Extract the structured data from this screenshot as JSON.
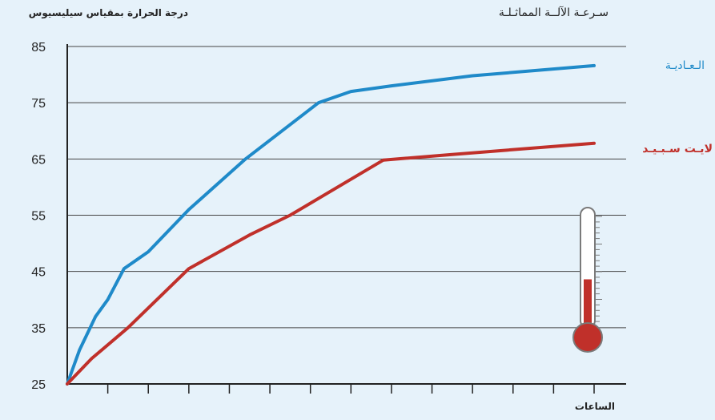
{
  "chart_data": {
    "type": "line",
    "title": "سـرعـة الآلــة المماثـلـة",
    "ylabel": "درجة الحرارة بمقياس سيليسيوس",
    "xlabel": "الساعات",
    "ylim": [
      25,
      85
    ],
    "yticks": [
      25,
      35,
      45,
      55,
      65,
      75,
      85
    ],
    "xlim": [
      0,
      13
    ],
    "xticks": [
      1,
      2,
      3,
      4,
      5,
      6,
      7,
      8,
      9,
      10,
      11,
      12,
      13
    ],
    "grid": true,
    "series": [
      {
        "name": "الـعـاديـة",
        "color": "#1f8ac9",
        "x": [
          0,
          0.3,
          0.7,
          1.0,
          1.4,
          2.0,
          3.0,
          4.4,
          6.2,
          7.0,
          8.0,
          10.0,
          13.0
        ],
        "values": [
          25,
          31,
          37,
          40,
          45.5,
          48.5,
          56,
          65,
          75,
          77,
          78,
          79.8,
          81.6
        ]
      },
      {
        "name": "لايـت سـبـيـد",
        "color": "#c0302a",
        "x": [
          0,
          0.6,
          1.5,
          3.0,
          4.5,
          5.5,
          7.8,
          9.5,
          13.0
        ],
        "values": [
          25,
          29.5,
          35,
          45.5,
          51.5,
          55,
          64.8,
          65.8,
          67.8
        ]
      }
    ]
  },
  "legend": {
    "normal_label": "الـعـاديـة",
    "normal_color": "#1f8ac9",
    "light_label": "لايـت سـبـيـد",
    "light_color": "#c0302a"
  },
  "thermometer": {
    "icon": "thermometer-icon",
    "fill_color": "#c0302a",
    "fill_level": 0.45
  }
}
